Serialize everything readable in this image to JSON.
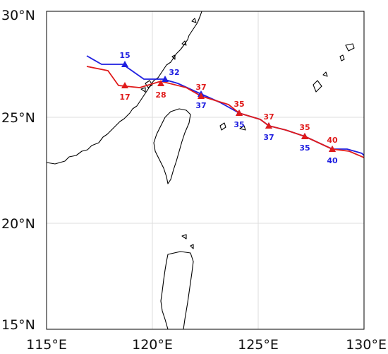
{
  "map": {
    "lon_range": [
      115,
      130
    ],
    "lat_range": [
      15,
      30
    ],
    "gridlines": true,
    "x_tick_labels": [
      {
        "lon": 115,
        "label": "115°E"
      },
      {
        "lon": 120,
        "label": "120°E"
      },
      {
        "lon": 125,
        "label": "125°E"
      },
      {
        "lon": 130,
        "label": "130°E"
      }
    ],
    "y_tick_labels": [
      {
        "lat": 15,
        "label": "15°N"
      },
      {
        "lat": 20,
        "label": "20°N"
      },
      {
        "lat": 25,
        "label": "25°N"
      },
      {
        "lat": 30,
        "label": "30°N"
      }
    ]
  },
  "colors": {
    "track_blue": "#1f1fe0",
    "track_red": "#e01b1b",
    "coastline": "#000000",
    "grid": "#dddddd",
    "frame": "#000000"
  },
  "tracks": [
    {
      "color_key": "track_blue",
      "path": [
        [
          116.9,
          27.9
        ],
        [
          117.6,
          27.5
        ],
        [
          118.6,
          27.5
        ],
        [
          119.6,
          26.8
        ],
        [
          120.5,
          26.8
        ],
        [
          121.2,
          26.6
        ],
        [
          122.3,
          26.1
        ],
        [
          123.2,
          25.7
        ],
        [
          124.1,
          25.2
        ],
        [
          125.1,
          24.9
        ],
        [
          125.5,
          24.6
        ],
        [
          126.3,
          24.4
        ],
        [
          127.2,
          24.1
        ],
        [
          128.5,
          23.5
        ],
        [
          129.2,
          23.5
        ],
        [
          129.9,
          23.3
        ],
        [
          130.0,
          23.2
        ]
      ],
      "points": [
        {
          "lon": 118.7,
          "lat": 27.5,
          "label": "15",
          "label_pos": "above"
        },
        {
          "lon": 120.6,
          "lat": 26.8,
          "label": "32",
          "label_pos": "above-right"
        },
        {
          "lon": 122.3,
          "lat": 26.1,
          "label": "37",
          "label_pos": "below"
        },
        {
          "lon": 124.1,
          "lat": 25.2,
          "label": "35",
          "label_pos": "below"
        },
        {
          "lon": 125.5,
          "lat": 24.6,
          "label": "37",
          "label_pos": "below"
        },
        {
          "lon": 127.2,
          "lat": 24.1,
          "label": "35",
          "label_pos": "below"
        },
        {
          "lon": 128.5,
          "lat": 23.5,
          "label": "40",
          "label_pos": "below"
        }
      ]
    },
    {
      "color_key": "track_red",
      "path": [
        [
          116.9,
          27.4
        ],
        [
          117.9,
          27.2
        ],
        [
          118.4,
          26.5
        ],
        [
          119.4,
          26.4
        ],
        [
          120.4,
          26.7
        ],
        [
          121.6,
          26.4
        ],
        [
          122.3,
          26.0
        ],
        [
          123.6,
          25.6
        ],
        [
          124.1,
          25.2
        ],
        [
          125.1,
          24.9
        ],
        [
          125.5,
          24.6
        ],
        [
          126.3,
          24.4
        ],
        [
          127.2,
          24.1
        ],
        [
          128.5,
          23.5
        ],
        [
          129.3,
          23.4
        ],
        [
          130.0,
          23.1
        ]
      ],
      "points": [
        {
          "lon": 118.7,
          "lat": 26.5,
          "label": "17",
          "label_pos": "below"
        },
        {
          "lon": 120.4,
          "lat": 26.6,
          "label": "28",
          "label_pos": "below"
        },
        {
          "lon": 122.3,
          "lat": 26.0,
          "label": "37",
          "label_pos": "above"
        },
        {
          "lon": 124.1,
          "lat": 25.2,
          "label": "35",
          "label_pos": "above"
        },
        {
          "lon": 125.5,
          "lat": 24.6,
          "label": "37",
          "label_pos": "above"
        },
        {
          "lon": 127.2,
          "lat": 24.1,
          "label": "35",
          "label_pos": "above"
        },
        {
          "lon": 128.5,
          "lat": 23.5,
          "label": "40",
          "label_pos": "above"
        }
      ]
    }
  ]
}
